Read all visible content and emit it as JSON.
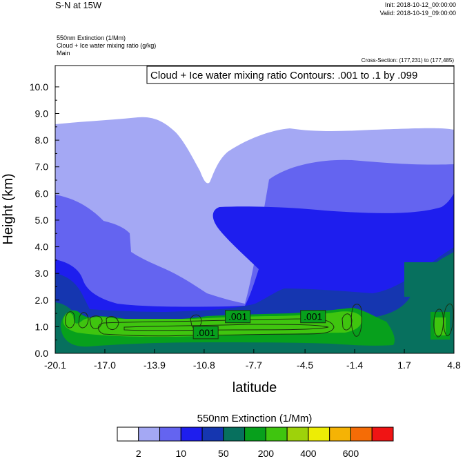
{
  "header": {
    "title": "S-N at 15W",
    "init": "Init: 2018-10-12_00:00:00",
    "valid": "Valid: 2018-10-19_09:00:00",
    "fields": [
      "550nm Extinction   (1/Mm)",
      "Cloud + Ice water mixing ratio   (g/kg)",
      "Main"
    ],
    "cross_section": "Cross-Section: (177,231) to (177,485)"
  },
  "chart_data": {
    "type": "heatmap",
    "title": "S-N at 15W",
    "xlabel": "latitude",
    "ylabel": "Height (km)",
    "x_ticks": [
      "-20.1",
      "-17.0",
      "-13.9",
      "-10.8",
      "-7.7",
      "-4.5",
      "-1.4",
      "1.7",
      "4.8"
    ],
    "x_range": [
      -20.1,
      4.8
    ],
    "y_ticks": [
      "0.0",
      "1.0",
      "2.0",
      "3.0",
      "4.0",
      "5.0",
      "6.0",
      "7.0",
      "8.0",
      "9.0",
      "10.0"
    ],
    "y_range": [
      0,
      10.8
    ],
    "contour_info": "Cloud + Ice water mixing ratio Contours: .001 to .1 by .099",
    "contour_labels": [
      {
        "text": ".001",
        "x": -8.7,
        "y": 1.38
      },
      {
        "text": ".001",
        "x": -4.0,
        "y": 1.38
      },
      {
        "text": ".001",
        "x": -10.7,
        "y": 0.78
      }
    ],
    "colorbar": {
      "title": "550nm Extinction  (1/Mm)",
      "colors": [
        "#ffffff",
        "#a4a8f4",
        "#6464f0",
        "#1e1eee",
        "#1536b0",
        "#07705e",
        "#07a01c",
        "#3fc50f",
        "#9ed20a",
        "#eded05",
        "#f5b305",
        "#f56c06",
        "#f01414"
      ],
      "labels": [
        {
          "text": "2",
          "boundary": 1
        },
        {
          "text": "10",
          "boundary": 3
        },
        {
          "text": "50",
          "boundary": 5
        },
        {
          "text": "200",
          "boundary": 7
        },
        {
          "text": "400",
          "boundary": 9
        },
        {
          "text": "600",
          "boundary": 11
        }
      ]
    },
    "grid": false
  }
}
